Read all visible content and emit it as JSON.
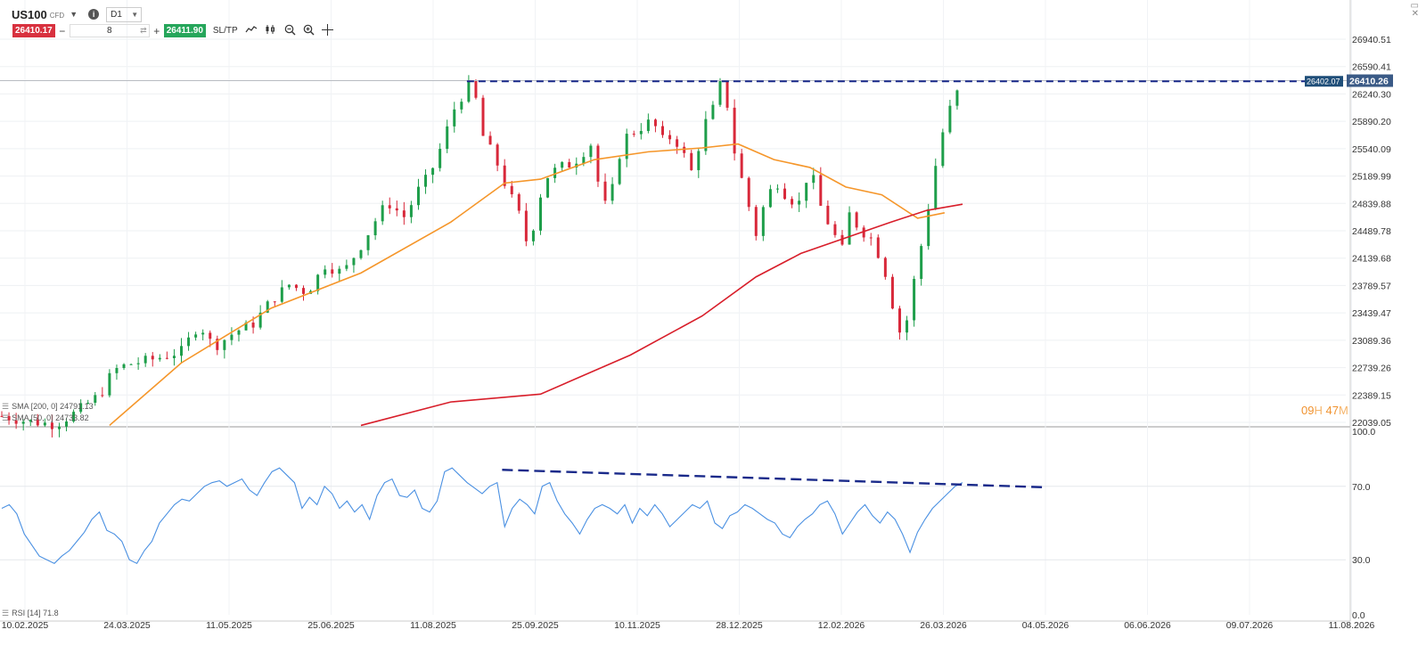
{
  "header": {
    "symbol": "US100",
    "instrument_type": "CFD",
    "timeframe": "D1",
    "sell_price": "26410.17",
    "quantity": "8",
    "buy_price": "26411.90",
    "sltp_label": "SL/TP",
    "icons": [
      "caret-down-icon",
      "info-icon",
      "minus-icon",
      "plus-icon",
      "swap-icon",
      "line-chart-icon",
      "candles-icon",
      "zoom-out-icon",
      "zoom-in-icon",
      "crosshair-icon"
    ]
  },
  "window_controls": {
    "icons": [
      "maximize-icon",
      "close-icon"
    ]
  },
  "countdown": {
    "hours": "09",
    "h": "H",
    "minutes": "47",
    "m": "M"
  },
  "indicators": {
    "sma200": "SMA [200, 0] 24791.13",
    "sma50": "SMA [50, 0] 24733.82",
    "rsi": "RSI [14] 71.8"
  },
  "colors": {
    "up": "#1e9e4a",
    "down": "#d8283a",
    "sma50": "#f5962a",
    "sma200": "#d81e2a",
    "rsi": "#4a90e2",
    "trend": "#1a2a8a",
    "price_tag": "#1f4e79",
    "accent": "#f0922f"
  },
  "chart_data": [
    {
      "type": "candlestick",
      "price_ticks": [
        26940.51,
        26590.41,
        26240.3,
        25890.2,
        25540.09,
        25189.99,
        24839.88,
        24489.78,
        24139.68,
        23789.57,
        23439.47,
        23089.36,
        22739.26,
        22389.15,
        22039.05
      ],
      "x_ticks": [
        "10.02.2025",
        "24.03.2025",
        "11.05.2025",
        "25.06.2025",
        "11.08.2025",
        "25.09.2025",
        "10.11.2025",
        "28.12.2025",
        "12.02.2026",
        "26.03.2026",
        "04.05.2026",
        "06.06.2026",
        "09.07.2026",
        "11.08.2026"
      ],
      "ylim": [
        22039.05,
        26940.51
      ],
      "current_price": "26410.26",
      "dashed_level": "26402.07",
      "close_path": [
        [
          0,
          22120
        ],
        [
          12,
          22060
        ],
        [
          30,
          22010
        ],
        [
          40,
          22150
        ],
        [
          55,
          22400
        ],
        [
          62,
          22700
        ],
        [
          70,
          22780
        ],
        [
          85,
          22850
        ],
        [
          100,
          22950
        ],
        [
          110,
          23300
        ],
        [
          118,
          23000
        ],
        [
          130,
          23200
        ],
        [
          140,
          23300
        ],
        [
          150,
          23600
        ],
        [
          160,
          23800
        ],
        [
          170,
          23700
        ],
        [
          180,
          24050
        ],
        [
          190,
          23950
        ],
        [
          200,
          24300
        ],
        [
          210,
          24700
        ],
        [
          215,
          24850
        ],
        [
          225,
          24650
        ],
        [
          230,
          24950
        ],
        [
          238,
          25200
        ],
        [
          242,
          25400
        ],
        [
          252,
          26050
        ],
        [
          258,
          26280
        ],
        [
          262,
          26400
        ],
        [
          268,
          25700
        ],
        [
          275,
          25400
        ],
        [
          280,
          25100
        ],
        [
          285,
          24850
        ],
        [
          290,
          24600
        ],
        [
          293,
          24250
        ],
        [
          297,
          24650
        ],
        [
          302,
          25150
        ],
        [
          310,
          25300
        ],
        [
          318,
          25350
        ],
        [
          324,
          25500
        ],
        [
          328,
          25600
        ],
        [
          333,
          25000
        ],
        [
          338,
          24700
        ],
        [
          342,
          25350
        ],
        [
          348,
          25700
        ],
        [
          355,
          25800
        ],
        [
          362,
          25900
        ],
        [
          368,
          25650
        ],
        [
          374,
          25700
        ],
        [
          380,
          25450
        ],
        [
          385,
          25200
        ],
        [
          390,
          25800
        ],
        [
          396,
          26050
        ],
        [
          400,
          26350
        ],
        [
          404,
          26100
        ],
        [
          408,
          25500
        ],
        [
          412,
          25150
        ],
        [
          416,
          24800
        ],
        [
          420,
          24450
        ],
        [
          426,
          24950
        ],
        [
          432,
          25100
        ],
        [
          438,
          24900
        ],
        [
          444,
          24850
        ],
        [
          450,
          25300
        ],
        [
          456,
          24800
        ],
        [
          462,
          24500
        ],
        [
          468,
          24250
        ],
        [
          472,
          24700
        ],
        [
          478,
          24500
        ],
        [
          484,
          24400
        ],
        [
          490,
          24100
        ],
        [
          494,
          23800
        ],
        [
          498,
          23300
        ],
        [
          502,
          23100
        ],
        [
          506,
          23600
        ],
        [
          510,
          24100
        ],
        [
          514,
          24500
        ],
        [
          518,
          25100
        ],
        [
          522,
          25550
        ],
        [
          526,
          25950
        ],
        [
          530,
          26150
        ],
        [
          535,
          26410
        ]
      ],
      "sma50": [
        [
          60,
          22000
        ],
        [
          100,
          22800
        ],
        [
          150,
          23500
        ],
        [
          200,
          23950
        ],
        [
          250,
          24600
        ],
        [
          280,
          25100
        ],
        [
          300,
          25150
        ],
        [
          330,
          25400
        ],
        [
          360,
          25500
        ],
        [
          390,
          25550
        ],
        [
          410,
          25600
        ],
        [
          430,
          25400
        ],
        [
          450,
          25300
        ],
        [
          470,
          25050
        ],
        [
          490,
          24950
        ],
        [
          510,
          24650
        ],
        [
          525,
          24720
        ]
      ],
      "sma200": [
        [
          200,
          22000
        ],
        [
          250,
          22300
        ],
        [
          300,
          22400
        ],
        [
          350,
          22900
        ],
        [
          390,
          23400
        ],
        [
          420,
          23900
        ],
        [
          445,
          24200
        ],
        [
          470,
          24400
        ],
        [
          495,
          24600
        ],
        [
          515,
          24750
        ],
        [
          535,
          24830
        ]
      ]
    },
    {
      "type": "line",
      "name": "RSI [14]",
      "ylim": [
        0,
        100
      ],
      "y_ticks": [
        100.0,
        70.0,
        30.0,
        0.0
      ],
      "values": [
        58,
        60,
        55,
        44,
        38,
        32,
        30,
        28,
        32,
        35,
        40,
        45,
        52,
        56,
        46,
        44,
        40,
        30,
        28,
        35,
        40,
        50,
        55,
        60,
        63,
        62,
        66,
        70,
        72,
        73,
        70,
        72,
        74,
        68,
        65,
        72,
        78,
        80,
        76,
        72,
        58,
        64,
        60,
        70,
        66,
        58,
        62,
        56,
        60,
        52,
        65,
        72,
        74,
        65,
        64,
        68,
        58,
        56,
        62,
        78,
        80,
        76,
        72,
        69,
        66,
        70,
        72,
        48,
        58,
        63,
        60,
        55,
        70,
        72,
        62,
        55,
        50,
        44,
        52,
        58,
        60,
        58,
        55,
        60,
        50,
        58,
        54,
        60,
        55,
        48,
        52,
        56,
        60,
        58,
        62,
        50,
        47,
        54,
        56,
        60,
        58,
        55,
        52,
        50,
        44,
        42,
        48,
        52,
        55,
        60,
        62,
        55,
        44,
        50,
        56,
        60,
        54,
        50,
        56,
        52,
        44,
        34,
        45,
        52,
        58,
        62,
        66,
        70,
        72
      ]
    },
    {
      "type": "trendline",
      "name": "RSI resistance",
      "from": [
        0.36,
        79.0
      ],
      "to": [
        0.75,
        69.5
      ]
    }
  ]
}
